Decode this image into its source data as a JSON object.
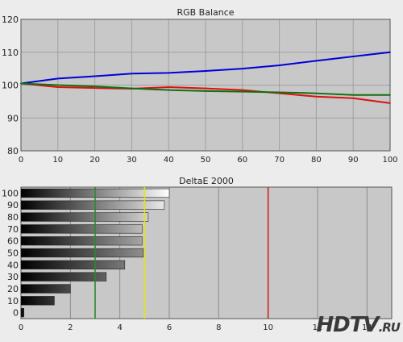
{
  "chart_data": [
    {
      "type": "line",
      "title": "RGB Balance",
      "xlabel": "",
      "ylabel": "",
      "x": [
        0,
        10,
        20,
        30,
        40,
        50,
        60,
        70,
        80,
        90,
        100
      ],
      "xlim": [
        0,
        100
      ],
      "ylim": [
        80,
        120
      ],
      "xticks": [
        "0",
        "10",
        "20",
        "30",
        "40",
        "50",
        "60",
        "70",
        "80",
        "90",
        "100"
      ],
      "yticks": [
        "80",
        "90",
        "100",
        "110",
        "120"
      ],
      "grid": true,
      "series": [
        {
          "color": "#0000d8",
          "values": [
            100.5,
            102.0,
            102.7,
            103.5,
            103.7,
            104.3,
            105.0,
            106.0,
            107.4,
            108.7,
            110.0
          ]
        },
        {
          "color": "#dd1010",
          "values": [
            100.5,
            99.4,
            99.1,
            98.9,
            99.4,
            99.0,
            98.5,
            97.5,
            96.5,
            96.0,
            94.5
          ]
        },
        {
          "color": "#107010",
          "values": [
            100.5,
            100.0,
            99.6,
            99.0,
            98.5,
            98.2,
            98.0,
            97.8,
            97.5,
            97.0,
            97.0
          ]
        }
      ],
      "background": "#c8c8c8"
    },
    {
      "type": "bar",
      "orientation": "horizontal",
      "title": "DeltaE 2000",
      "categories": [
        "0",
        "10",
        "20",
        "30",
        "40",
        "50",
        "60",
        "70",
        "80",
        "90",
        "100"
      ],
      "values": [
        0.12,
        1.35,
        2.0,
        3.45,
        4.2,
        4.95,
        4.9,
        4.9,
        5.15,
        5.8,
        6.0
      ],
      "xlim": [
        0,
        15
      ],
      "xticks": [
        "0",
        "2",
        "4",
        "6",
        "8",
        "10",
        "12",
        "14"
      ],
      "thresholds": [
        {
          "value": 3,
          "color": "#2a8a2a"
        },
        {
          "value": 5,
          "color": "#e6e600"
        },
        {
          "value": 10,
          "color": "#cc2222"
        }
      ],
      "grid": true,
      "background": "#c8c8c8"
    }
  ],
  "watermark": {
    "main": "HDTV",
    "suffix": ".RU"
  }
}
